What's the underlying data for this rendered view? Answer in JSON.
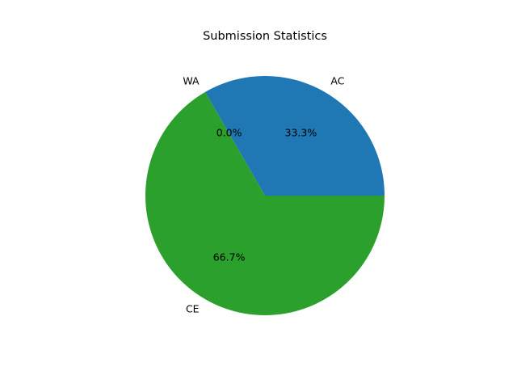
{
  "chart_data": {
    "type": "pie",
    "title": "Submission Statistics",
    "categories": [
      "AC",
      "WA",
      "CE"
    ],
    "values": [
      1,
      0,
      2
    ],
    "percent_labels": [
      "33.3%",
      "0.0%",
      "66.7%"
    ],
    "colors": [
      "#1f77b4",
      "#ff7f0e",
      "#2ca02c"
    ],
    "start_angle_deg": 0,
    "direction": "counterclockwise",
    "legend": "none"
  }
}
